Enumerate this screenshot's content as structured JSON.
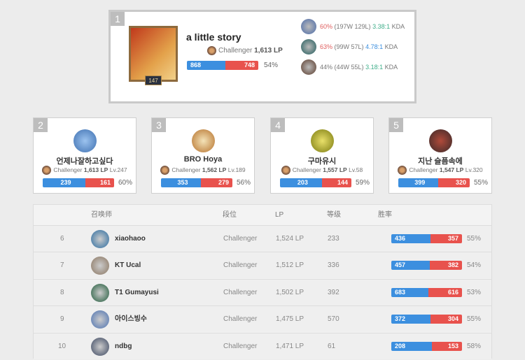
{
  "top": {
    "rank": "1",
    "name": "a little story",
    "level": "147",
    "tier": "Challenger",
    "lp": "1,613 LP",
    "wins": 868,
    "losses": 748,
    "winrate": "54%",
    "champions": [
      {
        "winrate": "60%",
        "record": "(197W 129L)",
        "kda": "3.38:1",
        "kda_color": "#3fae8a",
        "wr_color": "#e06060",
        "suffix": "KDA"
      },
      {
        "winrate": "63%",
        "record": "(99W 57L)",
        "kda": "4.78:1",
        "kda_color": "#3c8fdf",
        "wr_color": "#e06060",
        "suffix": "KDA"
      },
      {
        "winrate": "44%",
        "record": "(44W 55L)",
        "kda": "3.18:1",
        "kda_color": "#3fae8a",
        "wr_color": "#777777",
        "suffix": "KDA"
      }
    ]
  },
  "cards": [
    {
      "rank": "2",
      "name": "언제나잘하고싶다",
      "tier": "Challenger",
      "lp": "1,613 LP",
      "level": "Lv.247",
      "wins": 239,
      "losses": 161,
      "winrate": "60%"
    },
    {
      "rank": "3",
      "name": "BRO Hoya",
      "tier": "Challenger",
      "lp": "1,562 LP",
      "level": "Lv.189",
      "wins": 353,
      "losses": 279,
      "winrate": "56%"
    },
    {
      "rank": "4",
      "name": "구마유시",
      "tier": "Challenger",
      "lp": "1,557 LP",
      "level": "Lv.58",
      "wins": 203,
      "losses": 144,
      "winrate": "59%"
    },
    {
      "rank": "5",
      "name": "지난 슬픔속에",
      "tier": "Challenger",
      "lp": "1,547 LP",
      "level": "Lv.320",
      "wins": 399,
      "losses": 320,
      "winrate": "55%"
    }
  ],
  "table": {
    "headers": {
      "summoner": "召唤师",
      "tier": "段位",
      "lp": "LP",
      "level": "等级",
      "winrate": "胜率"
    },
    "rows": [
      {
        "rank": "6",
        "name": "xiaohaoo",
        "tier": "Challenger",
        "lp": "1,524 LP",
        "level": "233",
        "wins": 436,
        "losses": 357,
        "winrate": "55%"
      },
      {
        "rank": "7",
        "name": "KT Ucal",
        "tier": "Challenger",
        "lp": "1,512 LP",
        "level": "336",
        "wins": 457,
        "losses": 382,
        "winrate": "54%"
      },
      {
        "rank": "8",
        "name": "T1 Gumayusi",
        "tier": "Challenger",
        "lp": "1,502 LP",
        "level": "392",
        "wins": 683,
        "losses": 616,
        "winrate": "53%"
      },
      {
        "rank": "9",
        "name": "아이스빙수",
        "tier": "Challenger",
        "lp": "1,475 LP",
        "level": "570",
        "wins": 372,
        "losses": 304,
        "winrate": "55%"
      },
      {
        "rank": "10",
        "name": "ndbg",
        "tier": "Challenger",
        "lp": "1,471 LP",
        "level": "61",
        "wins": 208,
        "losses": 153,
        "winrate": "58%"
      }
    ]
  }
}
